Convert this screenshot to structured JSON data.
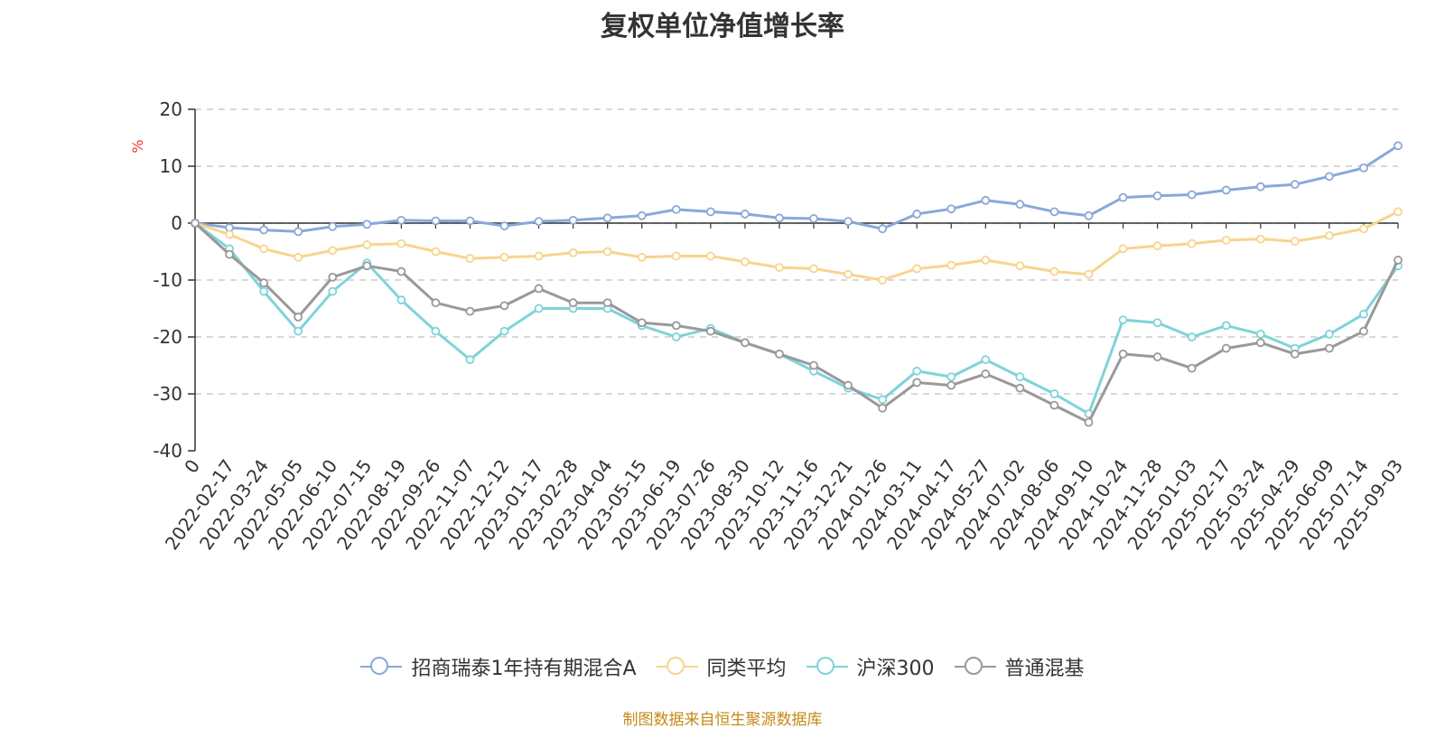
{
  "title": "复权单位净值增长率",
  "source": "制图数据来自恒生聚源数据库",
  "chart_data": {
    "type": "line",
    "title": "复权单位净值增长率",
    "ylabel": "%",
    "ylim": [
      -40,
      20
    ],
    "yticks": [
      20,
      10,
      0,
      -10,
      -20,
      -30,
      -40
    ],
    "grid": true,
    "legend_position": "bottom",
    "x_tick_labels": [
      "0",
      "2022-02-17",
      "2022-03-24",
      "2022-05-05",
      "2022-06-10",
      "2022-07-15",
      "2022-08-19",
      "2022-09-26",
      "2022-11-07",
      "2022-12-12",
      "2023-01-17",
      "2023-02-28",
      "2023-04-04",
      "2023-05-15",
      "2023-06-19",
      "2023-07-26",
      "2023-08-30",
      "2023-10-12",
      "2023-11-16",
      "2023-12-21",
      "2024-01-26",
      "2024-03-11",
      "2024-04-17",
      "2024-05-27",
      "2024-07-02",
      "2024-08-06",
      "2024-09-10",
      "2024-10-24",
      "2024-11-28",
      "2025-01-03",
      "2025-02-17",
      "2025-03-24",
      "2025-04-29",
      "2025-06-09",
      "2025-07-14",
      "2025-09-03"
    ],
    "series": [
      {
        "name": "招商瑞泰1年持有期混合A",
        "color": "#8aa8d8",
        "values": [
          0,
          -0.8,
          -1.2,
          -1.5,
          -0.6,
          -0.2,
          0.5,
          0.4,
          0.4,
          -0.5,
          0.3,
          0.5,
          0.9,
          1.3,
          2.4,
          2.0,
          1.6,
          0.9,
          0.8,
          0.3,
          -1.0,
          1.6,
          2.5,
          4.0,
          3.3,
          2.0,
          1.3,
          4.5,
          4.8,
          5.0,
          5.8,
          6.4,
          6.8,
          8.2,
          9.7,
          13.6
        ]
      },
      {
        "name": "同类平均",
        "color": "#f8d48e",
        "values": [
          0,
          -2.0,
          -4.5,
          -6.0,
          -4.8,
          -3.8,
          -3.6,
          -5.0,
          -6.2,
          -6.0,
          -5.8,
          -5.2,
          -5.0,
          -6.0,
          -5.8,
          -5.8,
          -6.8,
          -7.8,
          -8.0,
          -9.0,
          -10.0,
          -8.0,
          -7.4,
          -6.5,
          -7.5,
          -8.5,
          -9.0,
          -4.5,
          -4.0,
          -3.6,
          -3.0,
          -2.8,
          -3.2,
          -2.2,
          -1.0,
          2.0
        ]
      },
      {
        "name": "沪深300",
        "color": "#7fd3d8",
        "values": [
          0,
          -4.5,
          -12.0,
          -19.0,
          -12.0,
          -7.0,
          -13.5,
          -19.0,
          -24.0,
          -19.0,
          -15.0,
          -15.0,
          -15.0,
          -18.0,
          -20.0,
          -18.5,
          -21.0,
          -23.0,
          -26.0,
          -29.0,
          -31.0,
          -26.0,
          -27.0,
          -24.0,
          -27.0,
          -30.0,
          -33.5,
          -17.0,
          -17.5,
          -20.0,
          -18.0,
          -19.5,
          -22.0,
          -19.5,
          -16.0,
          -7.5
        ]
      },
      {
        "name": "普通混基",
        "color": "#999999",
        "values": [
          0,
          -5.5,
          -10.5,
          -16.5,
          -9.5,
          -7.5,
          -8.5,
          -14.0,
          -15.5,
          -14.5,
          -11.5,
          -14.0,
          -14.0,
          -17.5,
          -18.0,
          -19.0,
          -21.0,
          -23.0,
          -25.0,
          -28.5,
          -32.5,
          -28.0,
          -28.5,
          -26.5,
          -29.0,
          -32.0,
          -35.0,
          -23.0,
          -23.5,
          -25.5,
          -22.0,
          -21.0,
          -23.0,
          -22.0,
          -19.0,
          -6.5
        ]
      }
    ]
  }
}
